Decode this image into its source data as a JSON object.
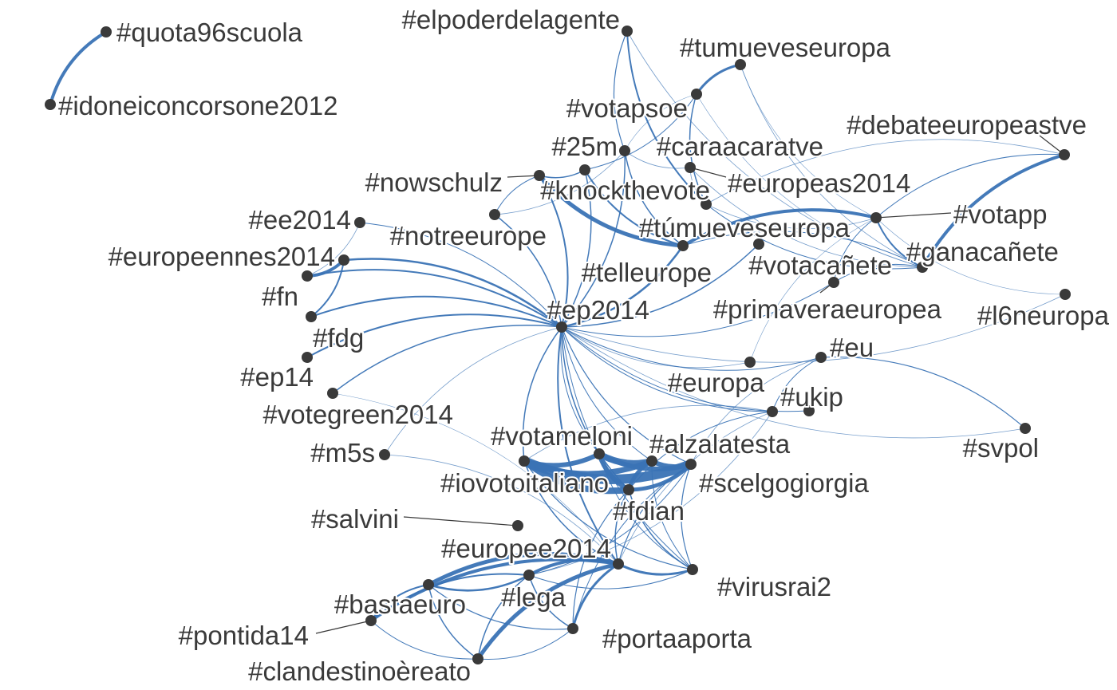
{
  "graph": {
    "edge_color": "#3a73b5",
    "node_color": "#3a3a3a",
    "text_color": "#3a3a3a",
    "nodes": [
      {
        "id": "quota96scuola",
        "label": "#quota96scuola"
      },
      {
        "id": "idoneiconcorsone2012",
        "label": "#idoneiconcorsone2012"
      },
      {
        "id": "elpoderdelagente",
        "label": "#elpoderdelagente"
      },
      {
        "id": "tumueveseuropa",
        "label": "#tumueveseuropa"
      },
      {
        "id": "votapsoe",
        "label": "#votapsoe"
      },
      {
        "id": "debateeuropeastve",
        "label": "#debateeuropeastve"
      },
      {
        "id": "25m",
        "label": "#25m"
      },
      {
        "id": "caraacaratve",
        "label": "#caraacaratve"
      },
      {
        "id": "europeas2014",
        "label": "#europeas2014"
      },
      {
        "id": "nowschulz",
        "label": "#nowschulz"
      },
      {
        "id": "knockthevote",
        "label": "#knockthevote"
      },
      {
        "id": "ee2014",
        "label": "#ee2014"
      },
      {
        "id": "votapp",
        "label": "#votapp"
      },
      {
        "id": "notreeurope",
        "label": "#notreeurope"
      },
      {
        "id": "tumueveseuropa2",
        "label": "#túmueveseuropa"
      },
      {
        "id": "europeennes2014",
        "label": "#europeennes2014"
      },
      {
        "id": "ganacanete",
        "label": "#ganacañete"
      },
      {
        "id": "votacanete",
        "label": "#votacañete"
      },
      {
        "id": "telleurope",
        "label": "#telleurope"
      },
      {
        "id": "fn",
        "label": "#fn"
      },
      {
        "id": "primaveraeuropea",
        "label": "#primaveraeuropea"
      },
      {
        "id": "l6neuropa",
        "label": "#l6neuropa"
      },
      {
        "id": "ep2014",
        "label": "#ep2014"
      },
      {
        "id": "fdg",
        "label": "#fdg"
      },
      {
        "id": "eu",
        "label": "#eu"
      },
      {
        "id": "ep14",
        "label": "#ep14"
      },
      {
        "id": "europa",
        "label": "#europa"
      },
      {
        "id": "ukip",
        "label": "#ukip"
      },
      {
        "id": "votegreen2014",
        "label": "#votegreen2014"
      },
      {
        "id": "svpol",
        "label": "#svpol"
      },
      {
        "id": "votameloni",
        "label": "#votameloni"
      },
      {
        "id": "alzalatesta",
        "label": "#alzalatesta"
      },
      {
        "id": "m5s",
        "label": "#m5s"
      },
      {
        "id": "iovotoitaliano",
        "label": "#iovotoitaliano"
      },
      {
        "id": "scelgogiorgia",
        "label": "#scelgogiorgia"
      },
      {
        "id": "fdian",
        "label": "#fdian"
      },
      {
        "id": "salvini",
        "label": "#salvini"
      },
      {
        "id": "europee2014",
        "label": "#europee2014"
      },
      {
        "id": "virusrai2",
        "label": "#virusrai2"
      },
      {
        "id": "lega",
        "label": "#lega"
      },
      {
        "id": "bastaeuro",
        "label": "#bastaeuro"
      },
      {
        "id": "pontida14",
        "label": "#pontida14"
      },
      {
        "id": "portaaporta",
        "label": "#portaaporta"
      },
      {
        "id": "clandestinoereato",
        "label": "#clandestinoèreato"
      }
    ],
    "edges": [
      {
        "s": "quota96scuola",
        "t": "idoneiconcorsone2012",
        "w": 4
      },
      {
        "s": "ep2014",
        "t": "nowschulz",
        "w": 2
      },
      {
        "s": "ep2014",
        "t": "knockthevote",
        "w": 1.5
      },
      {
        "s": "ep2014",
        "t": "notreeurope",
        "w": 1.5
      },
      {
        "s": "ep2014",
        "t": "ee2014",
        "w": 1
      },
      {
        "s": "ep2014",
        "t": "europeennes2014",
        "w": 2.5
      },
      {
        "s": "ep2014",
        "t": "fn",
        "w": 2
      },
      {
        "s": "ep2014",
        "t": "fdg",
        "w": 2
      },
      {
        "s": "ep2014",
        "t": "ep14",
        "w": 2
      },
      {
        "s": "ep2014",
        "t": "votegreen2014",
        "w": 1.5
      },
      {
        "s": "ep2014",
        "t": "tumueveseuropa2",
        "w": 2.5
      },
      {
        "s": "ep2014",
        "t": "telleurope",
        "w": 1.5
      },
      {
        "s": "ep2014",
        "t": "25m",
        "w": 1.5
      },
      {
        "s": "ep2014",
        "t": "eu",
        "w": 1
      },
      {
        "s": "ep2014",
        "t": "europa",
        "w": 1
      },
      {
        "s": "ep2014",
        "t": "ukip",
        "w": 1
      },
      {
        "s": "ep2014",
        "t": "votacanete",
        "w": 1
      },
      {
        "s": "ep2014",
        "t": "primaveraeuropea",
        "w": 0.8
      },
      {
        "s": "ep2014",
        "t": "l6neuropa",
        "w": 0.8
      },
      {
        "s": "ep2014",
        "t": "europee2014",
        "w": 2
      },
      {
        "s": "ep2014",
        "t": "iovotoitaliano",
        "w": 1.5
      },
      {
        "s": "ep2014",
        "t": "fdian",
        "w": 1.5
      },
      {
        "s": "ep2014",
        "t": "scelgogiorgia",
        "w": 1.2
      },
      {
        "s": "ep2014",
        "t": "votameloni",
        "w": 1
      },
      {
        "s": "ep2014",
        "t": "alzalatesta",
        "w": 1
      },
      {
        "s": "ep2014",
        "t": "virusrai2",
        "w": 1
      },
      {
        "s": "ep2014",
        "t": "m5s",
        "w": 0.8
      },
      {
        "s": "ep2014",
        "t": "svpol",
        "w": 0.8
      },
      {
        "s": "fn",
        "t": "europeennes2014",
        "w": 4
      },
      {
        "s": "fn",
        "t": "ee2014",
        "w": 0.8
      },
      {
        "s": "fdg",
        "t": "europeennes2014",
        "w": 2
      },
      {
        "s": "nowschulz",
        "t": "tumueveseuropa2",
        "w": 5
      },
      {
        "s": "nowschulz",
        "t": "knockthevote",
        "w": 1.5
      },
      {
        "s": "nowschulz",
        "t": "notreeurope",
        "w": 1
      },
      {
        "s": "knockthevote",
        "t": "tumueveseuropa2",
        "w": 2
      },
      {
        "s": "knockthevote",
        "t": "votapsoe",
        "w": 1
      },
      {
        "s": "notreeurope",
        "t": "25m",
        "w": 0.8
      },
      {
        "s": "25m",
        "t": "tumueveseuropa2",
        "w": 1.5
      },
      {
        "s": "25m",
        "t": "caraacaratve",
        "w": 0.8
      },
      {
        "s": "elpoderdelagente",
        "t": "europeas2014",
        "w": 2
      },
      {
        "s": "elpoderdelagente",
        "t": "25m",
        "w": 1.2
      },
      {
        "s": "elpoderdelagente",
        "t": "ganacanete",
        "w": 0.8
      },
      {
        "s": "tumueveseuropa",
        "t": "votapsoe",
        "w": 3
      },
      {
        "s": "tumueveseuropa",
        "t": "ganacanete",
        "w": 0.8
      },
      {
        "s": "tumueveseuropa",
        "t": "votapp",
        "w": 0.6
      },
      {
        "s": "votapsoe",
        "t": "europeas2014",
        "w": 1.5
      },
      {
        "s": "votapsoe",
        "t": "ganacanete",
        "w": 0.6
      },
      {
        "s": "votapsoe",
        "t": "25m",
        "w": 0.6
      },
      {
        "s": "debateeuropeastve",
        "t": "ganacanete",
        "w": 4
      },
      {
        "s": "debateeuropeastve",
        "t": "votapp",
        "w": 1
      },
      {
        "s": "debateeuropeastve",
        "t": "europeas2014",
        "w": 0.8
      },
      {
        "s": "europeas2014",
        "t": "ganacanete",
        "w": 1
      },
      {
        "s": "europeas2014",
        "t": "votapp",
        "w": 0.8
      },
      {
        "s": "votapp",
        "t": "tumueveseuropa2",
        "w": 4
      },
      {
        "s": "votapp",
        "t": "ganacanete",
        "w": 2
      },
      {
        "s": "votapp",
        "t": "l6neuropa",
        "w": 0.6
      },
      {
        "s": "votapp",
        "t": "primaveraeuropea",
        "w": 0.6
      },
      {
        "s": "votapp",
        "t": "votacanete",
        "w": 1
      },
      {
        "s": "ganacanete",
        "t": "tumueveseuropa2",
        "w": 1
      },
      {
        "s": "ganacanete",
        "t": "votacanete",
        "w": 1
      },
      {
        "s": "caraacaratve",
        "t": "ganacanete",
        "w": 0.8
      },
      {
        "s": "caraacaratve",
        "t": "europeas2014",
        "w": 0.8
      },
      {
        "s": "svpol",
        "t": "eu",
        "w": 1.2
      },
      {
        "s": "eu",
        "t": "europa",
        "w": 1
      },
      {
        "s": "eu",
        "t": "scelgogiorgia",
        "w": 0.8
      },
      {
        "s": "europa",
        "t": "fdian",
        "w": 1
      },
      {
        "s": "europa",
        "t": "iovotoitaliano",
        "w": 0.8
      },
      {
        "s": "europa",
        "t": "europee2014",
        "w": 0.8
      },
      {
        "s": "iovotoitaliano",
        "t": "scelgogiorgia",
        "w": 12
      },
      {
        "s": "iovotoitaliano",
        "t": "fdian",
        "w": 8
      },
      {
        "s": "iovotoitaliano",
        "t": "votameloni",
        "w": 6
      },
      {
        "s": "iovotoitaliano",
        "t": "alzalatesta",
        "w": 7
      },
      {
        "s": "votameloni",
        "t": "alzalatesta",
        "w": 8
      },
      {
        "s": "votameloni",
        "t": "fdian",
        "w": 6
      },
      {
        "s": "votameloni",
        "t": "scelgogiorgia",
        "w": 6
      },
      {
        "s": "alzalatesta",
        "t": "scelgogiorgia",
        "w": 6
      },
      {
        "s": "alzalatesta",
        "t": "fdian",
        "w": 5
      },
      {
        "s": "fdian",
        "t": "scelgogiorgia",
        "w": 5
      },
      {
        "s": "iovotoitaliano",
        "t": "europee2014",
        "w": 1.5
      },
      {
        "s": "iovotoitaliano",
        "t": "virusrai2",
        "w": 1.2
      },
      {
        "s": "fdian",
        "t": "virusrai2",
        "w": 1.5
      },
      {
        "s": "fdian",
        "t": "europee2014",
        "w": 1.5
      },
      {
        "s": "fdian",
        "t": "portaaporta",
        "w": 1.2
      },
      {
        "s": "scelgogiorgia",
        "t": "virusrai2",
        "w": 1.2
      },
      {
        "s": "scelgogiorgia",
        "t": "europee2014",
        "w": 1.2
      },
      {
        "s": "scelgogiorgia",
        "t": "portaaporta",
        "w": 1
      },
      {
        "s": "votameloni",
        "t": "virusrai2",
        "w": 1
      },
      {
        "s": "alzalatesta",
        "t": "virusrai2",
        "w": 1
      },
      {
        "s": "europee2014",
        "t": "virusrai2",
        "w": 3
      },
      {
        "s": "europee2014",
        "t": "bastaeuro",
        "w": 5
      },
      {
        "s": "europee2014",
        "t": "lega",
        "w": 4
      },
      {
        "s": "europee2014",
        "t": "pontida14",
        "w": 4
      },
      {
        "s": "europee2014",
        "t": "clandestinoereato",
        "w": 5
      },
      {
        "s": "europee2014",
        "t": "portaaporta",
        "w": 3
      },
      {
        "s": "europee2014",
        "t": "m5s",
        "w": 0.8
      },
      {
        "s": "europee2014",
        "t": "votegreen2014",
        "w": 0.6
      },
      {
        "s": "bastaeuro",
        "t": "lega",
        "w": 2.5
      },
      {
        "s": "bastaeuro",
        "t": "pontida14",
        "w": 2
      },
      {
        "s": "bastaeuro",
        "t": "clandestinoereato",
        "w": 1.5
      },
      {
        "s": "bastaeuro",
        "t": "portaaporta",
        "w": 1.2
      },
      {
        "s": "lega",
        "t": "pontida14",
        "w": 2
      },
      {
        "s": "lega",
        "t": "clandestinoereato",
        "w": 1.5
      },
      {
        "s": "lega",
        "t": "portaaporta",
        "w": 1.5
      },
      {
        "s": "lega",
        "t": "virusrai2",
        "w": 1
      },
      {
        "s": "lega",
        "t": "europa",
        "w": 0.8
      },
      {
        "s": "lega",
        "t": "scelgogiorgia",
        "w": 1
      },
      {
        "s": "pontida14",
        "t": "clandestinoereato",
        "w": 1
      },
      {
        "s": "clandestinoereato",
        "t": "portaaporta",
        "w": 1
      }
    ]
  }
}
